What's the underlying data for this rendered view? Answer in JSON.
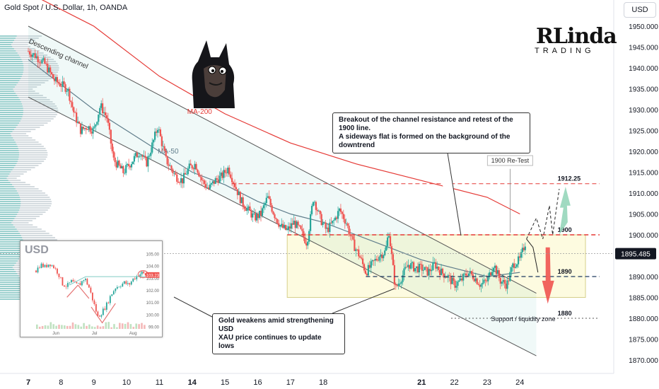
{
  "header": {
    "title": "Gold Spot / U.S. Dollar, 1h, OANDA",
    "currency_chip": "USD"
  },
  "logo": {
    "main": "RLinda",
    "sub": "TRADING"
  },
  "chart_data": {
    "type": "candlestick",
    "title": "Gold Spot / U.S. Dollar, 1h, OANDA",
    "x_ticks": [
      "7",
      "8",
      "9",
      "10",
      "11",
      "14",
      "15",
      "16",
      "17",
      "18",
      "21",
      "22",
      "23",
      "24"
    ],
    "x_ticks_bold": [
      "7",
      "14",
      "21"
    ],
    "y_ticks": [
      1950,
      1945,
      1940,
      1935,
      1930,
      1925,
      1920,
      1915,
      1910,
      1905,
      1900,
      1895,
      1890,
      1885,
      1880,
      1875,
      1870
    ],
    "ylim": [
      1867,
      1955
    ],
    "grid": false,
    "last_price": "1895.485",
    "close_path": [
      [
        7.0,
        1944
      ],
      [
        7.2,
        1943
      ],
      [
        7.5,
        1941
      ],
      [
        7.8,
        1937
      ],
      [
        8.0,
        1936
      ],
      [
        8.2,
        1935
      ],
      [
        8.4,
        1929
      ],
      [
        8.6,
        1925
      ],
      [
        8.8,
        1926
      ],
      [
        9.0,
        1925
      ],
      [
        9.2,
        1931
      ],
      [
        9.4,
        1928
      ],
      [
        9.6,
        1918
      ],
      [
        9.9,
        1915
      ],
      [
        10.1,
        1917
      ],
      [
        10.4,
        1920
      ],
      [
        10.6,
        1917
      ],
      [
        10.8,
        1922
      ],
      [
        10.95,
        1926
      ],
      [
        11.2,
        1918
      ],
      [
        11.5,
        1914
      ],
      [
        11.7,
        1913
      ],
      [
        11.9,
        1916
      ],
      [
        12.1,
        1917
      ],
      [
        12.3,
        1913
      ],
      [
        12.5,
        1911
      ],
      [
        12.7,
        1913
      ],
      [
        12.9,
        1914
      ],
      [
        13.1,
        1916
      ],
      [
        13.3,
        1912
      ],
      [
        13.5,
        1908
      ],
      [
        13.7,
        1906
      ],
      [
        13.9,
        1904
      ],
      [
        14.1,
        1905
      ],
      [
        14.3,
        1909
      ],
      [
        14.5,
        1905
      ],
      [
        14.7,
        1902
      ],
      [
        14.9,
        1901
      ],
      [
        15.1,
        1903
      ],
      [
        15.3,
        1901
      ],
      [
        15.5,
        1898
      ],
      [
        15.7,
        1909
      ],
      [
        15.9,
        1904
      ],
      [
        16.1,
        1901
      ],
      [
        16.3,
        1903
      ],
      [
        16.5,
        1906
      ],
      [
        16.7,
        1903
      ],
      [
        16.9,
        1898
      ],
      [
        17.1,
        1895
      ],
      [
        17.3,
        1891
      ],
      [
        17.5,
        1893
      ],
      [
        17.7,
        1895
      ],
      [
        17.9,
        1896
      ],
      [
        18.0,
        1901
      ],
      [
        18.2,
        1887
      ],
      [
        18.4,
        1890
      ],
      [
        18.6,
        1893
      ],
      [
        18.8,
        1892
      ],
      [
        19.0,
        1892
      ],
      [
        19.2,
        1891
      ],
      [
        19.4,
        1893
      ],
      [
        19.6,
        1891
      ],
      [
        19.8,
        1890
      ],
      [
        20.0,
        1888
      ],
      [
        20.2,
        1889
      ],
      [
        20.4,
        1891
      ],
      [
        20.6,
        1890
      ],
      [
        20.8,
        1888
      ],
      [
        21.0,
        1889
      ],
      [
        21.2,
        1893
      ],
      [
        21.4,
        1889
      ],
      [
        21.6,
        1888
      ],
      [
        21.8,
        1893
      ],
      [
        22.0,
        1894
      ],
      [
        22.2,
        1899
      ]
    ],
    "series": [
      {
        "name": "MA-200",
        "values": [
          [
            7.0,
            1958
          ],
          [
            9.0,
            1950
          ],
          [
            11.0,
            1938
          ],
          [
            13.0,
            1929
          ],
          [
            15.0,
            1922
          ],
          [
            17.0,
            1917
          ],
          [
            19.0,
            1913
          ],
          [
            21.0,
            1909
          ],
          [
            22.0,
            1905
          ]
        ]
      },
      {
        "name": "MA-50",
        "values": [
          [
            7.0,
            1942
          ],
          [
            8.0,
            1936
          ],
          [
            9.0,
            1930
          ],
          [
            10.0,
            1925
          ],
          [
            11.0,
            1920
          ],
          [
            12.0,
            1915
          ],
          [
            13.0,
            1912
          ],
          [
            14.0,
            1908
          ],
          [
            15.0,
            1905
          ],
          [
            16.0,
            1903
          ],
          [
            17.0,
            1900
          ],
          [
            18.0,
            1897
          ],
          [
            19.0,
            1894
          ],
          [
            20.0,
            1892
          ],
          [
            21.0,
            1890
          ],
          [
            22.0,
            1891
          ]
        ]
      }
    ],
    "channel": {
      "label": "Descending channel",
      "upper": [
        [
          7.0,
          1950
        ],
        [
          22.5,
          1886
        ]
      ],
      "lower": [
        [
          7.0,
          1933
        ],
        [
          22.5,
          1871
        ]
      ]
    },
    "levels": [
      {
        "label": "1912.25",
        "value": 1912.25,
        "style": "red-dashed"
      },
      {
        "label": "1900",
        "value": 1900,
        "style": "red-dashed"
      },
      {
        "label": "1890",
        "value": 1890,
        "style": "navy-dashed"
      },
      {
        "label": "1880",
        "value": 1880,
        "style": "gray-dotted"
      }
    ],
    "flat_zone": {
      "y_top": 1900,
      "y_bottom": 1885,
      "x_from": 14.9,
      "x_to": 24.0
    },
    "forecast_up": [
      [
        22.2,
        1899
      ],
      [
        22.5,
        1904
      ],
      [
        22.7,
        1899
      ],
      [
        22.9,
        1907
      ],
      [
        23.0,
        1900
      ],
      [
        23.2,
        1911
      ]
    ],
    "forecast_down": [
      [
        22.2,
        1899
      ],
      [
        22.4,
        1897
      ],
      [
        22.55,
        1891
      ]
    ],
    "annotations": {
      "ma200": "MA-200",
      "ma50": "MA-50",
      "retest": "1900 Re-Test",
      "support": "Support / liquidity zone",
      "callout_top": [
        "Breakout of the channel resistance and retest of the 1900 line.",
        "A sideways flat is formed on the background of the downtrend"
      ],
      "callout_bottom": [
        "Gold weakens amid strengthening USD",
        "XAU price continues to update lows"
      ]
    },
    "inset": {
      "title": "USD",
      "y_ticks": [
        105.0,
        104.0,
        103.0,
        102.0,
        101.0,
        100.0,
        99.0
      ],
      "ylim": [
        98.8,
        105.2
      ],
      "x_ticks": [
        "Jun",
        "Jul",
        "Aug"
      ],
      "last": "103.23",
      "close_path": [
        [
          0.0,
          103.6
        ],
        [
          0.04,
          104.1
        ],
        [
          0.08,
          103.9
        ],
        [
          0.12,
          104.2
        ],
        [
          0.16,
          103.9
        ],
        [
          0.2,
          103.4
        ],
        [
          0.24,
          102.5
        ],
        [
          0.28,
          102.3
        ],
        [
          0.32,
          102.7
        ],
        [
          0.36,
          102.4
        ],
        [
          0.4,
          102.5
        ],
        [
          0.44,
          103.0
        ],
        [
          0.48,
          102.2
        ],
        [
          0.52,
          101.0
        ],
        [
          0.56,
          99.8
        ],
        [
          0.6,
          100.2
        ],
        [
          0.64,
          100.8
        ],
        [
          0.68,
          101.6
        ],
        [
          0.72,
          102.2
        ],
        [
          0.76,
          102.4
        ],
        [
          0.8,
          102.6
        ],
        [
          0.84,
          102.4
        ],
        [
          0.88,
          102.9
        ],
        [
          0.92,
          103.2
        ],
        [
          0.96,
          103.4
        ],
        [
          1.0,
          103.2
        ]
      ]
    }
  },
  "colors": {
    "up": "#26a69a",
    "down": "#ef5350",
    "ma200": "#e53935",
    "ma50": "#607d8b",
    "level_red": "#e53935",
    "level_navy": "#1e3a5f",
    "zone_fill": "#fdfbe0",
    "zone_border": "#d6cf8a",
    "forecast_up": "#8fd3b6",
    "forecast_down": "#ef5350",
    "price_label": "#131722"
  }
}
